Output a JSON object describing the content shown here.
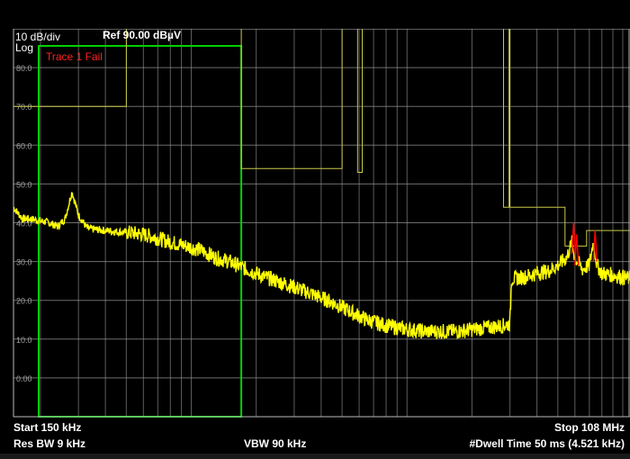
{
  "header": {
    "scale_label": "10 dB/div",
    "ref_label": "Ref 90.00 dBµV",
    "scale_type": "Log",
    "trace_status": "Trace 1 Fail"
  },
  "y_axis": {
    "tick_labels": [
      "80.0",
      "70.0",
      "60.0",
      "50.0",
      "40.0",
      "30.0",
      "20.0",
      "10.0",
      "0.00"
    ]
  },
  "footer": {
    "start": "Start 150 kHz",
    "stop": "Stop 108 MHz",
    "res_bw": "Res BW 9 kHz",
    "vbw": "VBW 90 kHz",
    "dwell": "#Dwell Time 50 ms (4.521 kHz)"
  },
  "colors": {
    "background": "#000000",
    "grid": "#9a9a9a",
    "trace": "#ffff00",
    "limit_line": "#c8c84a",
    "fail": "#ff0000",
    "highlight_box": "#00d000",
    "text": "#ffffff",
    "axis_text": "#a0a0a0"
  },
  "chart_data": {
    "type": "line",
    "title": "",
    "xlabel": "",
    "ylabel": "",
    "x_scale": "log",
    "x_range_mhz": [
      0.15,
      108
    ],
    "ylim": [
      -10,
      90
    ],
    "grid": true,
    "series": [
      {
        "name": "",
        "points": [
          [
            0.15,
            44
          ],
          [
            0.165,
            41
          ],
          [
            0.18,
            41
          ],
          [
            0.2,
            40.5
          ],
          [
            0.22,
            40
          ],
          [
            0.24,
            39
          ],
          [
            0.26,
            41
          ],
          [
            0.28,
            48
          ],
          [
            0.3,
            42
          ],
          [
            0.33,
            38.5
          ],
          [
            0.4,
            38
          ],
          [
            0.5,
            37.5
          ],
          [
            0.6,
            37
          ],
          [
            0.7,
            36
          ],
          [
            0.8,
            35
          ],
          [
            0.95,
            34
          ],
          [
            1.1,
            33
          ],
          [
            1.3,
            31
          ],
          [
            1.5,
            30
          ],
          [
            1.8,
            28
          ],
          [
            2.2,
            26
          ],
          [
            2.8,
            24
          ],
          [
            3.5,
            22
          ],
          [
            4.5,
            19.5
          ],
          [
            5.5,
            17
          ],
          [
            6.5,
            15
          ],
          [
            8,
            13.5
          ],
          [
            10,
            12.5
          ],
          [
            12,
            12
          ],
          [
            14,
            12
          ],
          [
            17,
            12
          ],
          [
            20,
            12.5
          ],
          [
            24,
            13
          ],
          [
            28,
            13.5
          ],
          [
            30,
            14
          ],
          [
            30.5,
            25.5
          ],
          [
            35,
            26
          ],
          [
            40,
            27
          ],
          [
            45,
            27.5
          ],
          [
            50,
            29
          ],
          [
            55,
            31
          ],
          [
            58,
            35
          ],
          [
            60,
            31
          ],
          [
            65,
            28
          ],
          [
            70,
            29
          ],
          [
            73,
            35
          ],
          [
            76,
            29
          ],
          [
            80,
            27
          ],
          [
            90,
            26.5
          ],
          [
            100,
            26
          ],
          [
            108,
            25.5
          ]
        ]
      }
    ],
    "limit_line": [
      [
        0.15,
        70
      ],
      [
        0.5,
        70
      ],
      [
        0.5,
        90
      ],
      [
        1.705,
        90
      ],
      [
        1.705,
        54
      ],
      [
        5.0,
        54
      ],
      [
        5.0,
        90
      ],
      [
        5.9,
        90
      ],
      [
        5.9,
        53
      ],
      [
        6.2,
        53
      ],
      [
        6.2,
        90
      ],
      [
        28,
        90
      ],
      [
        28,
        44
      ],
      [
        29.7,
        44
      ],
      [
        29.7,
        90
      ],
      [
        30,
        90
      ],
      [
        30,
        44
      ],
      [
        54,
        44
      ],
      [
        54,
        34
      ],
      [
        68,
        34
      ],
      [
        68,
        38
      ],
      [
        108,
        38
      ]
    ],
    "highlight_range_mhz": [
      0.15,
      1.705
    ]
  }
}
